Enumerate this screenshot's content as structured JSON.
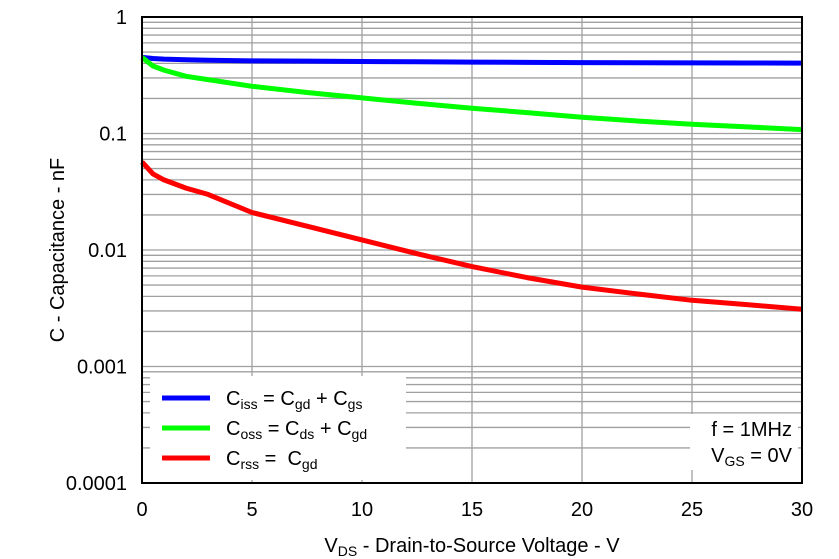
{
  "chart_data": {
    "type": "line",
    "title": "",
    "xlabel": {
      "main": "V",
      "sub": "DS",
      "rest": " - Drain-to-Source Voltage - V"
    },
    "ylabel": "C - Capacitance - nF",
    "xlim": [
      0,
      30
    ],
    "ylim": [
      0.0001,
      1
    ],
    "yscale": "log",
    "grid": true,
    "x_ticks": [
      "0",
      "5",
      "10",
      "15",
      "20",
      "25",
      "30"
    ],
    "x_tick_values": [
      0,
      5,
      10,
      15,
      20,
      25,
      30
    ],
    "y_ticks": [
      "0.0001",
      "0.001",
      "0.01",
      "0.1",
      "1"
    ],
    "y_tick_values": [
      0.0001,
      0.001,
      0.01,
      0.1,
      1
    ],
    "x": [
      0,
      0.5,
      1,
      2,
      3,
      5,
      7.5,
      10,
      12.5,
      15,
      17.5,
      20,
      22.5,
      25,
      27.5,
      30
    ],
    "series": [
      {
        "name": "Ciss = Cgd + Cgs",
        "color": "#0000ff",
        "legend": [
          {
            "t": "C"
          },
          {
            "s": "iss"
          },
          {
            "t": " = C"
          },
          {
            "s": "gd"
          },
          {
            "t": " + C"
          },
          {
            "s": "gs"
          }
        ],
        "values": [
          0.45,
          0.44,
          0.435,
          0.43,
          0.425,
          0.42,
          0.418,
          0.415,
          0.413,
          0.41,
          0.408,
          0.406,
          0.405,
          0.404,
          0.403,
          0.402
        ]
      },
      {
        "name": "Coss = Cds + Cgd",
        "color": "#00ff00",
        "legend": [
          {
            "t": "C"
          },
          {
            "s": "oss"
          },
          {
            "t": " = C"
          },
          {
            "s": "ds"
          },
          {
            "t": " + C"
          },
          {
            "s": "gd"
          }
        ],
        "values": [
          0.45,
          0.38,
          0.35,
          0.31,
          0.29,
          0.254,
          0.225,
          0.202,
          0.182,
          0.165,
          0.151,
          0.138,
          0.128,
          0.12,
          0.114,
          0.108
        ]
      },
      {
        "name": "Crss = Cgd",
        "color": "#ff0000",
        "legend": [
          {
            "t": "C"
          },
          {
            "s": "rss"
          },
          {
            "t": " =  C"
          },
          {
            "s": "gd"
          }
        ],
        "values": [
          0.057,
          0.045,
          0.04,
          0.034,
          0.03,
          0.021,
          0.016,
          0.0122,
          0.0093,
          0.0072,
          0.0058,
          0.0048,
          0.0042,
          0.0037,
          0.0034,
          0.0031
        ]
      }
    ],
    "legend_position": "bottom-left",
    "annotations": {
      "freq": "f = 1MHz",
      "vgs": {
        "main": "V",
        "sub": "GS",
        "rest": " = 0V"
      }
    }
  }
}
